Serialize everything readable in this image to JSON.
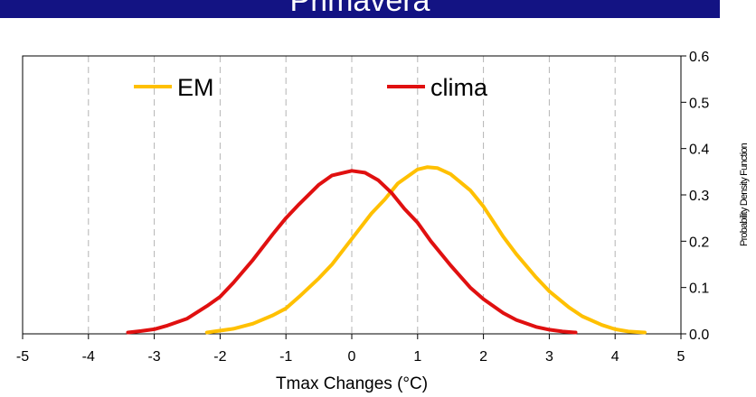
{
  "header": {
    "title": "Primavera",
    "bar_color": "#131383"
  },
  "chart_data": {
    "type": "line",
    "title": "Primavera",
    "xlabel": "Tmax Changes (°C)",
    "ylabel": "Probability Density Function",
    "xlim": [
      -5,
      5
    ],
    "ylim": [
      0,
      0.6
    ],
    "x_ticks": [
      -5,
      -4,
      -3,
      -2,
      -1,
      0,
      1,
      2,
      3,
      4,
      5
    ],
    "y_ticks": [
      0.0,
      0.1,
      0.2,
      0.3,
      0.4,
      0.5,
      0.6
    ],
    "x_tick_labels": [
      "-5",
      "-4",
      "-3",
      "-2",
      "-1",
      "0",
      "1",
      "2",
      "3",
      "4",
      "5"
    ],
    "y_tick_labels": [
      "0.0",
      "0.1",
      "0.2",
      "0.3",
      "0.4",
      "0.5",
      "0.6"
    ],
    "grid": "vertical dashed",
    "y_axis_side": "right",
    "legend_placement": "top",
    "series": [
      {
        "name": "EM",
        "color": "#FFC000",
        "x": [
          -2.2,
          -1.8,
          -1.5,
          -1.2,
          -1.0,
          -0.8,
          -0.5,
          -0.3,
          0.0,
          0.3,
          0.5,
          0.7,
          1.0,
          1.15,
          1.3,
          1.5,
          1.8,
          2.0,
          2.3,
          2.5,
          2.8,
          3.0,
          3.3,
          3.5,
          3.8,
          4.0,
          4.2,
          4.45
        ],
        "y": [
          0.003,
          0.011,
          0.022,
          0.04,
          0.055,
          0.08,
          0.12,
          0.15,
          0.205,
          0.26,
          0.29,
          0.325,
          0.355,
          0.36,
          0.358,
          0.345,
          0.31,
          0.275,
          0.21,
          0.172,
          0.122,
          0.092,
          0.057,
          0.038,
          0.019,
          0.01,
          0.005,
          0.003
        ]
      },
      {
        "name": "clima",
        "color": "#E01010",
        "x": [
          -3.4,
          -3.2,
          -3.0,
          -2.8,
          -2.5,
          -2.2,
          -2.0,
          -1.8,
          -1.5,
          -1.2,
          -1.0,
          -0.8,
          -0.5,
          -0.3,
          0.0,
          0.2,
          0.4,
          0.6,
          0.8,
          1.0,
          1.2,
          1.5,
          1.8,
          2.0,
          2.3,
          2.5,
          2.8,
          3.0,
          3.2,
          3.4
        ],
        "y": [
          0.003,
          0.006,
          0.01,
          0.018,
          0.033,
          0.06,
          0.08,
          0.11,
          0.16,
          0.215,
          0.25,
          0.28,
          0.322,
          0.342,
          0.352,
          0.348,
          0.332,
          0.305,
          0.27,
          0.24,
          0.2,
          0.148,
          0.1,
          0.075,
          0.045,
          0.03,
          0.015,
          0.009,
          0.005,
          0.003
        ]
      }
    ]
  }
}
